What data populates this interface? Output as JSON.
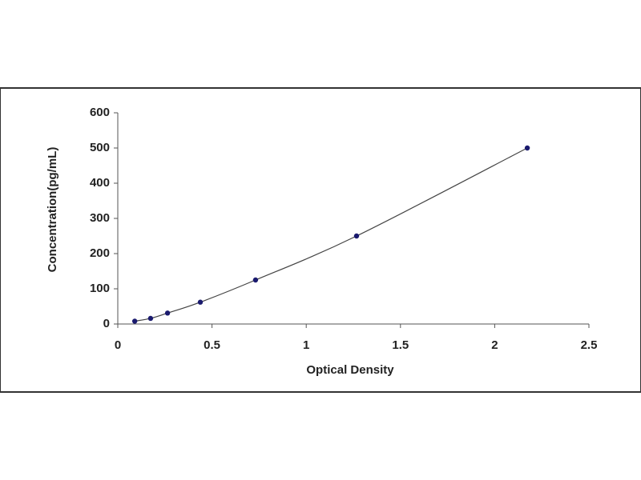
{
  "chart_data": {
    "type": "scatter",
    "x_label": "Optical Density",
    "y_label": "Concentration(pg/mL)",
    "series": [
      {
        "color": "#1a1a6e",
        "x": [
          0.09,
          0.174,
          0.264,
          0.438,
          0.731,
          1.267,
          2.173
        ],
        "values": [
          8,
          16,
          31,
          62,
          125,
          250,
          500
        ]
      }
    ],
    "trendline": true,
    "xlim": [
      0,
      2.5
    ],
    "xticks": [
      0,
      0.5,
      1,
      1.5,
      2,
      2.5
    ],
    "ylim": [
      0,
      600
    ],
    "yticks": [
      0,
      100,
      200,
      300,
      400,
      500,
      600
    ]
  }
}
